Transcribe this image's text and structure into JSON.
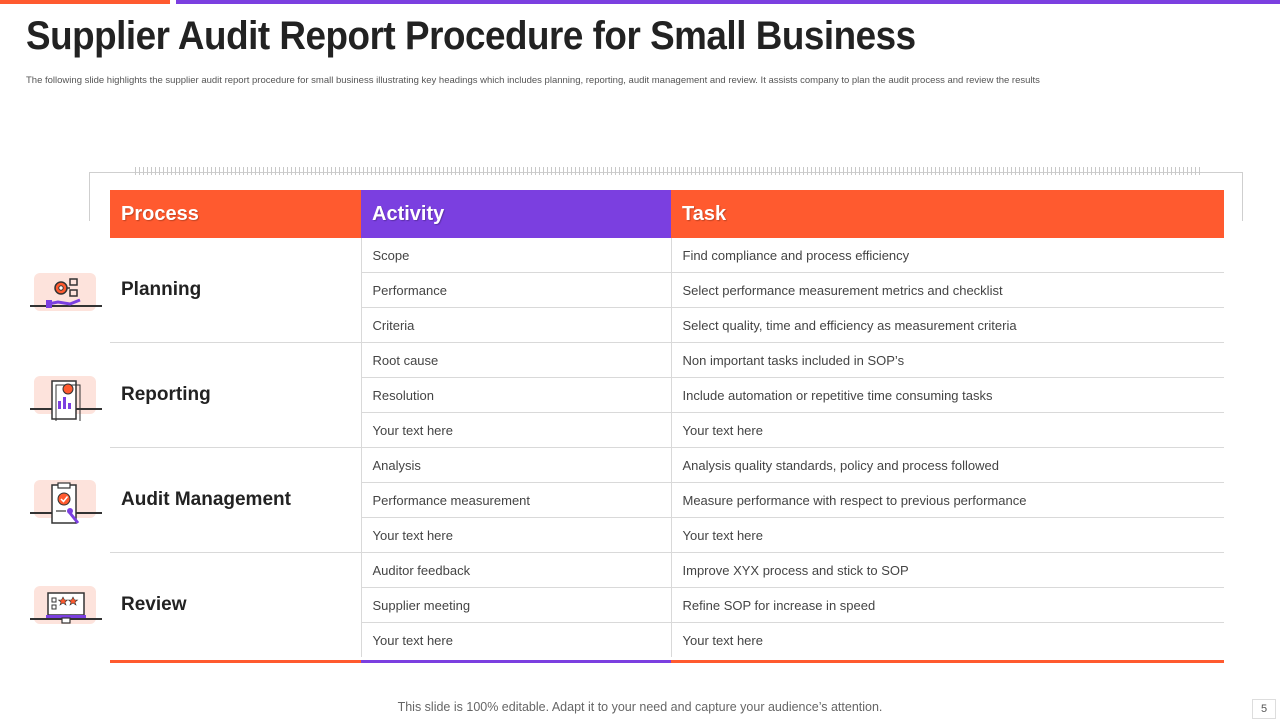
{
  "slide": {
    "title": "Supplier Audit Report Procedure for Small Business",
    "subtitle": "The following slide highlights the supplier audit report procedure for small business illustrating key headings which includes planning, reporting, audit management and review. It assists company to plan the audit process and review the results",
    "footer": "This slide is 100% editable. Adapt it to your need and capture your audience’s attention.",
    "page_number": "5"
  },
  "colors": {
    "orange": "#ff5a2f",
    "purple": "#7b3fe0",
    "icon_bg": "#fde3dc"
  },
  "table": {
    "headers": {
      "process": "Process",
      "activity": "Activity",
      "task": "Task"
    },
    "groups": [
      {
        "process": "Planning",
        "icon": "gear-hand-icon",
        "rows": [
          {
            "activity": "Scope",
            "task": "Find compliance and process efficiency"
          },
          {
            "activity": "Performance",
            "task": "Select performance  measurement metrics and checklist"
          },
          {
            "activity": "Criteria",
            "task": "Select quality, time and efficiency as measurement  criteria"
          }
        ]
      },
      {
        "process": "Reporting",
        "icon": "report-chart-icon",
        "rows": [
          {
            "activity": "Root cause",
            "task": "Non important tasks included in SOP’s"
          },
          {
            "activity": "Resolution",
            "task": "Include automation or repetitive time consuming tasks"
          },
          {
            "activity": "Your text here",
            "task": "Your text here"
          }
        ]
      },
      {
        "process": "Audit Management",
        "icon": "audit-clipboard-icon",
        "rows": [
          {
            "activity": "Analysis",
            "task": "Analysis quality standards, policy and process followed"
          },
          {
            "activity": "Performance  measurement",
            "task": "Measure performance  with respect to previous  performance"
          },
          {
            "activity": "Your text here",
            "task": "Your text here"
          }
        ]
      },
      {
        "process": "Review",
        "icon": "monitor-rating-icon",
        "rows": [
          {
            "activity": "Auditor feedback",
            "task": "Improve  XYX  process and stick to SOP"
          },
          {
            "activity": "Supplier meeting",
            "task": "Refine SOP for increase in speed"
          },
          {
            "activity": "Your text here",
            "task": "Your text here"
          }
        ]
      }
    ]
  }
}
